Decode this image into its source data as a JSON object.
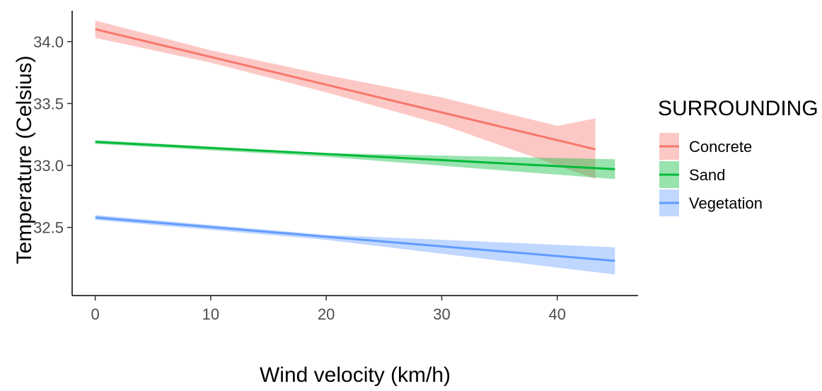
{
  "chart_data": {
    "type": "line",
    "xlabel": "Wind velocity (km/h)",
    "ylabel": "Temperature (Celsius)",
    "xlim": [
      -2,
      47
    ],
    "ylim": [
      31.95,
      34.25
    ],
    "x_ticks": [
      0,
      10,
      20,
      30,
      40
    ],
    "x_tick_labels": [
      "0",
      "10",
      "20",
      "30",
      "40"
    ],
    "y_ticks": [
      32.5,
      33.0,
      33.5,
      34.0
    ],
    "y_tick_labels": [
      "32.5",
      "33.0",
      "33.5",
      "34.0"
    ],
    "grid": false,
    "legend": {
      "title": "SURROUNDING",
      "placement": "right"
    },
    "series": [
      {
        "name": "Concrete",
        "color": "#F8766D",
        "x": [
          0,
          43.3
        ],
        "y": [
          34.1,
          33.13
        ],
        "ribbon_x": [
          0,
          10,
          20,
          30,
          40,
          43.3
        ],
        "ribbon_lower": [
          34.03,
          33.83,
          33.59,
          33.33,
          33.0,
          32.89
        ],
        "ribbon_upper": [
          34.17,
          33.93,
          33.73,
          33.55,
          33.32,
          33.38
        ]
      },
      {
        "name": "Sand",
        "color": "#00BA38",
        "x": [
          0,
          45
        ],
        "y": [
          33.19,
          32.97
        ],
        "ribbon_x": [
          0,
          20,
          45
        ],
        "ribbon_lower": [
          33.175,
          33.07,
          32.89
        ],
        "ribbon_upper": [
          33.205,
          33.1,
          33.05
        ]
      },
      {
        "name": "Vegetation",
        "color": "#619CFF",
        "x": [
          0,
          45
        ],
        "y": [
          32.58,
          32.23
        ],
        "ribbon_x": [
          0,
          20,
          45
        ],
        "ribbon_lower": [
          32.56,
          32.4,
          32.12
        ],
        "ribbon_upper": [
          32.6,
          32.44,
          32.34
        ]
      }
    ]
  }
}
